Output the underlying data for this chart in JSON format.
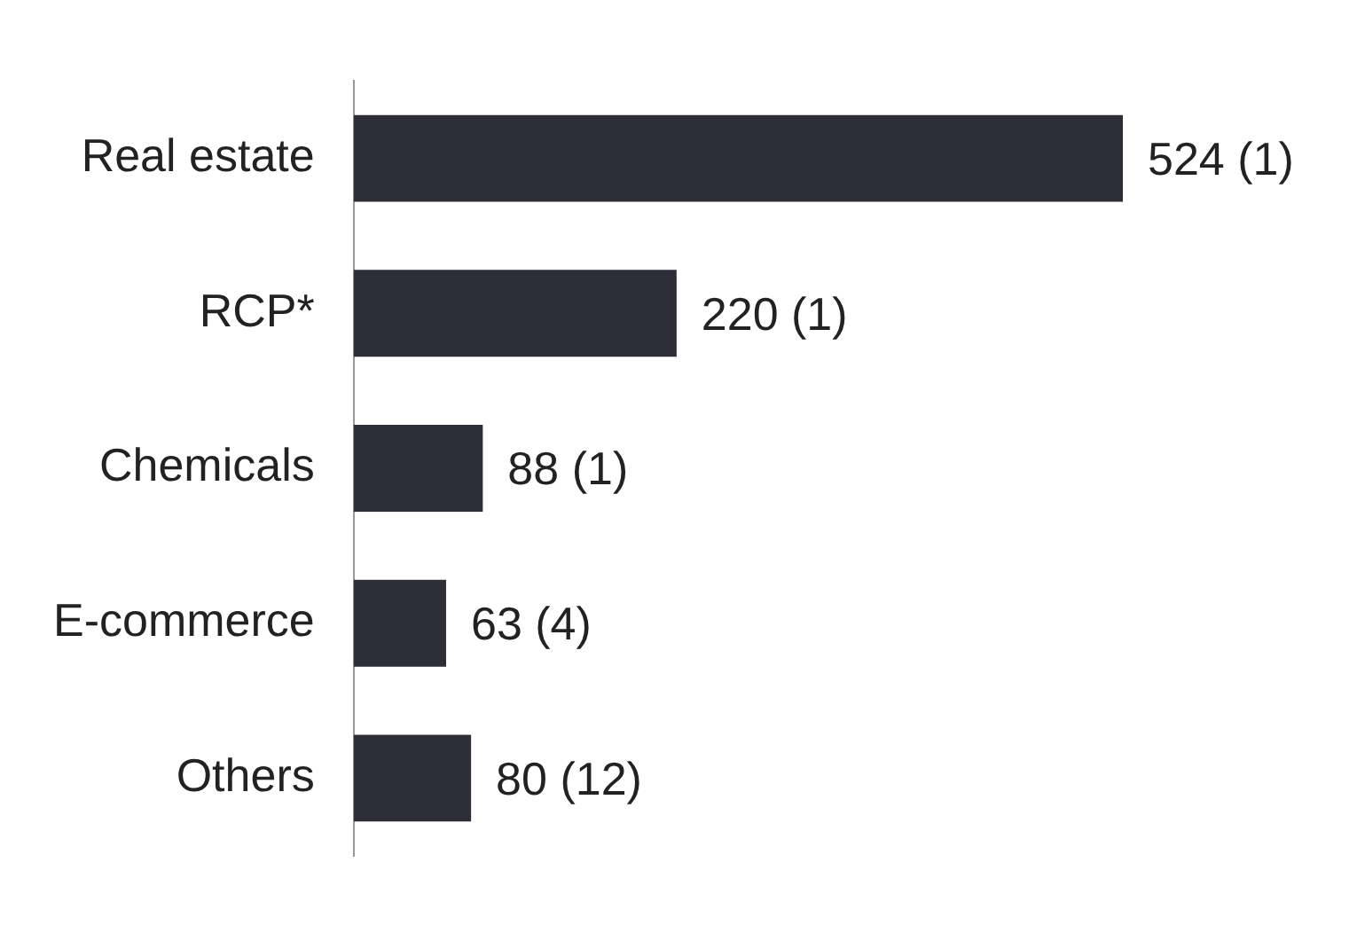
{
  "chart_data": {
    "type": "bar",
    "orientation": "horizontal",
    "categories": [
      "Real estate",
      "RCP*",
      "Chemicals",
      "E-commerce",
      "Others"
    ],
    "values": [
      524,
      220,
      88,
      63,
      80
    ],
    "value_labels": [
      "524 (1)",
      "220 (1)",
      "88 (1)",
      "63 (4)",
      "80 (12)"
    ],
    "color": "#2e2e38"
  }
}
